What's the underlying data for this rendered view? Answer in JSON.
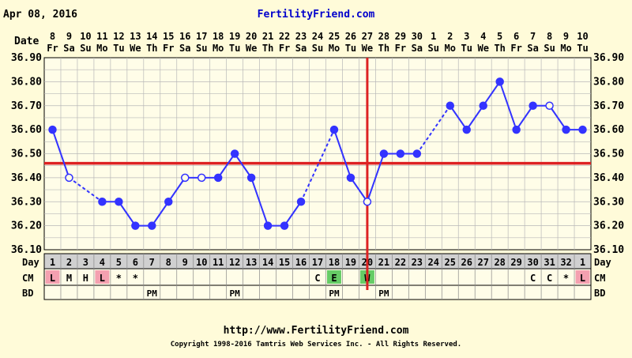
{
  "header": {
    "date_text": "Apr 08, 2016",
    "site_name": "FertilityFriend.com",
    "date_label": "Date"
  },
  "rows": {
    "day_label": "Day",
    "cm_label": "CM",
    "bd_label": "BD"
  },
  "footer": {
    "url": "http://www.FertilityFriend.com",
    "copyright": "Copyright 1998-2016 Tamtris Web Services Inc. - All Rights Reserved."
  },
  "colors": {
    "background": "#fffbd9",
    "grid_bg": "#fffde8",
    "series": "#3333ff",
    "threshold": "#dd2222",
    "site_name": "#0000cc",
    "cm_L": "#f4a0b0",
    "cm_E": "#66cc66",
    "cm_W": "#66cc66",
    "day_row_bg": "#d0d0d0"
  },
  "chart_data": {
    "type": "line",
    "title": "",
    "ylim": [
      36.1,
      36.9
    ],
    "y_ticks": [
      "36.10",
      "36.20",
      "36.30",
      "36.40",
      "36.50",
      "36.60",
      "36.70",
      "36.80",
      "36.90"
    ],
    "coverline": 36.46,
    "ovulation_day": 20,
    "grid": true,
    "dates": [
      "8",
      "9",
      "10",
      "11",
      "12",
      "13",
      "14",
      "15",
      "16",
      "17",
      "18",
      "19",
      "20",
      "21",
      "22",
      "23",
      "24",
      "25",
      "26",
      "27",
      "28",
      "29",
      "30",
      "1",
      "2",
      "3",
      "4",
      "5",
      "6",
      "7",
      "8",
      "9",
      "10"
    ],
    "weekdays": [
      "Fr",
      "Sa",
      "Su",
      "Mo",
      "Tu",
      "We",
      "Th",
      "Fr",
      "Sa",
      "Su",
      "Mo",
      "Tu",
      "We",
      "Th",
      "Fr",
      "Sa",
      "Su",
      "Mo",
      "Tu",
      "We",
      "Th",
      "Fr",
      "Sa",
      "Su",
      "Mo",
      "Tu",
      "We",
      "Th",
      "Fr",
      "Sa",
      "Su",
      "Mo",
      "Tu"
    ],
    "cycle_days": [
      "1",
      "2",
      "3",
      "4",
      "5",
      "6",
      "7",
      "8",
      "9",
      "10",
      "11",
      "12",
      "13",
      "14",
      "15",
      "16",
      "17",
      "18",
      "19",
      "20",
      "21",
      "22",
      "23",
      "24",
      "25",
      "26",
      "27",
      "28",
      "29",
      "30",
      "31",
      "32",
      "1"
    ],
    "temps": [
      36.6,
      36.4,
      null,
      36.3,
      36.3,
      36.2,
      36.2,
      36.3,
      36.4,
      36.4,
      36.4,
      36.5,
      36.4,
      36.2,
      36.2,
      36.3,
      null,
      36.6,
      36.4,
      36.3,
      36.5,
      36.5,
      36.5,
      null,
      36.7,
      36.6,
      36.7,
      36.8,
      36.6,
      36.7,
      36.7,
      36.6,
      36.6
    ],
    "open_points": [
      1,
      8,
      9,
      19,
      30
    ],
    "dashed_segments": [
      [
        1,
        3
      ],
      [
        15,
        17
      ],
      [
        22,
        24
      ]
    ],
    "cm": [
      "L",
      "M",
      "H",
      "L",
      "*",
      "*",
      "",
      "",
      "",
      "",
      "",
      "",
      "",
      "",
      "",
      "",
      "C",
      "E",
      "",
      "W",
      "",
      "",
      "",
      "",
      "",
      "",
      "",
      "",
      "",
      "C",
      "C",
      "*",
      "L"
    ],
    "bd": [
      "",
      "",
      "",
      "",
      "",
      "",
      "PM",
      "",
      "",
      "",
      "",
      "PM",
      "",
      "",
      "",
      "",
      "",
      "PM",
      "",
      "",
      "PM",
      "",
      "",
      "",
      "",
      "",
      "",
      "",
      "",
      "",
      "",
      "",
      ""
    ]
  }
}
